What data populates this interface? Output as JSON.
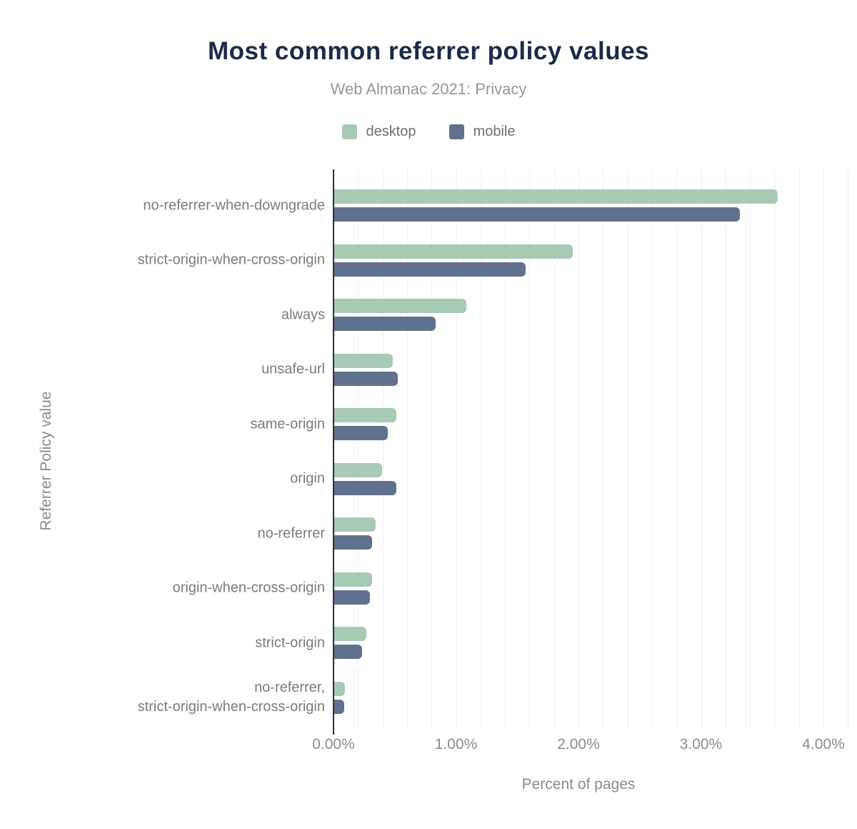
{
  "header": {
    "title": "Most common referrer policy values",
    "subtitle": "Web Almanac 2021: Privacy"
  },
  "legend": [
    {
      "label": "desktop",
      "color": "#a7cab5"
    },
    {
      "label": "mobile",
      "color": "#60718f"
    }
  ],
  "axes": {
    "x_title": "Percent of pages",
    "y_title": "Referrer Policy value"
  },
  "colors": {
    "title": "#1a2b49",
    "subtitle": "#9196a1",
    "desktop_bar": "#a7cab5",
    "mobile_bar": "#60718f",
    "axis_line": "#2f2f2f",
    "gridline": "#efefef",
    "label_text": "#7b7b7b"
  },
  "chart_data": {
    "type": "bar",
    "orientation": "horizontal",
    "title": "Most common referrer policy values",
    "subtitle": "Web Almanac 2021: Privacy",
    "xlabel": "Percent of pages",
    "ylabel": "Referrer Policy value",
    "xlim": [
      0,
      4.2
    ],
    "grid": true,
    "grid_step": 0.2,
    "legend_position": "top",
    "x_ticks": [
      {
        "value": 0,
        "label": "0.00%"
      },
      {
        "value": 1,
        "label": "1.00%"
      },
      {
        "value": 2,
        "label": "2.00%"
      },
      {
        "value": 3,
        "label": "3.00%"
      },
      {
        "value": 4,
        "label": "4.00%"
      }
    ],
    "categories": [
      "no-referrer-when-downgrade",
      "strict-origin-when-cross-origin",
      "always",
      "unsafe-url",
      "same-origin",
      "origin",
      "no-referrer",
      "origin-when-cross-origin",
      "strict-origin",
      "no-referrer,\nstrict-origin-when-cross-origin"
    ],
    "series": [
      {
        "name": "desktop",
        "color": "#a7cab5",
        "unit": "%",
        "values": [
          3.62,
          1.95,
          1.08,
          0.48,
          0.51,
          0.39,
          0.34,
          0.31,
          0.26,
          0.09
        ]
      },
      {
        "name": "mobile",
        "color": "#60718f",
        "unit": "%",
        "values": [
          3.31,
          1.56,
          0.83,
          0.52,
          0.44,
          0.51,
          0.31,
          0.29,
          0.23,
          0.08
        ]
      }
    ]
  }
}
